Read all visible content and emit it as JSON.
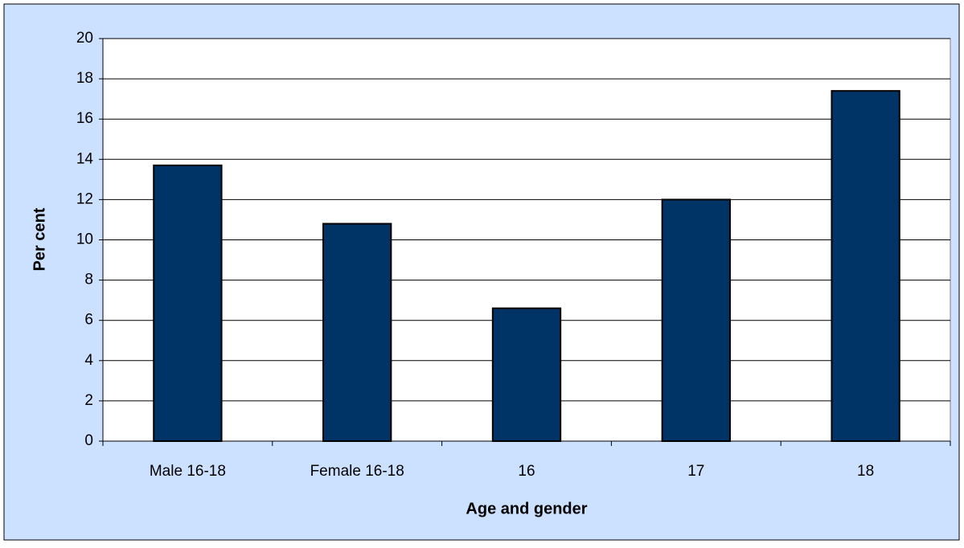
{
  "chart_data": {
    "type": "bar",
    "x_label": "Age and gender",
    "y_label": "Per cent",
    "categories": [
      "Male 16-18",
      "Female 16-18",
      "16",
      "17",
      "18"
    ],
    "values": [
      13.7,
      10.8,
      6.6,
      12.0,
      17.4
    ],
    "color": "#003366",
    "ylim": [
      0,
      20
    ],
    "yticks": [
      0,
      2,
      4,
      6,
      8,
      10,
      12,
      14,
      16,
      18,
      20
    ],
    "grid": true
  }
}
